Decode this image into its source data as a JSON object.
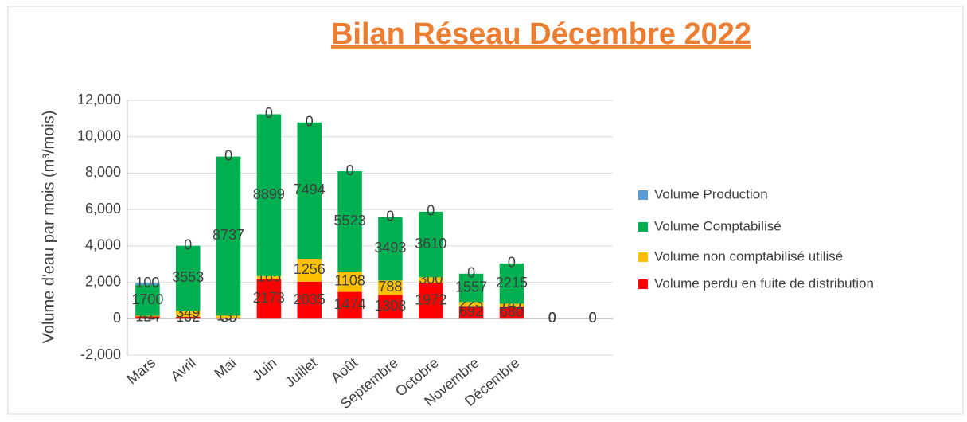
{
  "chart_data": {
    "type": "bar",
    "stacked": true,
    "title": "Bilan Réseau Décembre  2022",
    "y_label": "Volume d'eau par mois (m³/mois)",
    "categories": [
      "Mars",
      "Avril",
      "Mai",
      "Juin",
      "Juillet",
      "Août",
      "Septembre",
      "Octobre",
      "Novembre",
      "Décembre",
      null,
      null
    ],
    "series": [
      {
        "name": "Volume perdu en fuite de distribution",
        "color": "#ff0000",
        "values": [
          124,
          102,
          36,
          2173,
          2035,
          1474,
          1308,
          1972,
          692,
          680,
          0,
          0
        ]
      },
      {
        "name": "Volume non comptabilisé utilisé",
        "color": "#ffc000",
        "values": [
          42,
          349,
          137,
          165,
          1256,
          1108,
          788,
          300,
          223,
          141,
          0,
          0
        ]
      },
      {
        "name": "Volume Comptabilisé",
        "color": "#00b050",
        "values": [
          1700,
          3553,
          8737,
          8899,
          7494,
          5523,
          3493,
          3610,
          1557,
          2215,
          0,
          0
        ]
      },
      {
        "name": "Volume Production",
        "color": "#5b9bd5",
        "values": [
          100,
          0,
          0,
          0,
          0,
          0,
          0,
          0,
          0,
          0,
          0,
          0
        ]
      }
    ],
    "ylim": [
      -2000,
      12000
    ],
    "yticks": [
      {
        "value": -2000,
        "label": "-2,000"
      },
      0,
      {
        "value": 2000,
        "label": "2,000"
      },
      {
        "value": 4000,
        "label": "4,000"
      },
      {
        "value": 6000,
        "label": "6,000"
      },
      {
        "value": 8000,
        "label": "8,000"
      },
      {
        "value": 10000,
        "label": "10,000"
      },
      {
        "value": 12000,
        "label": "12,000"
      }
    ],
    "grid": true,
    "legend": "right"
  }
}
